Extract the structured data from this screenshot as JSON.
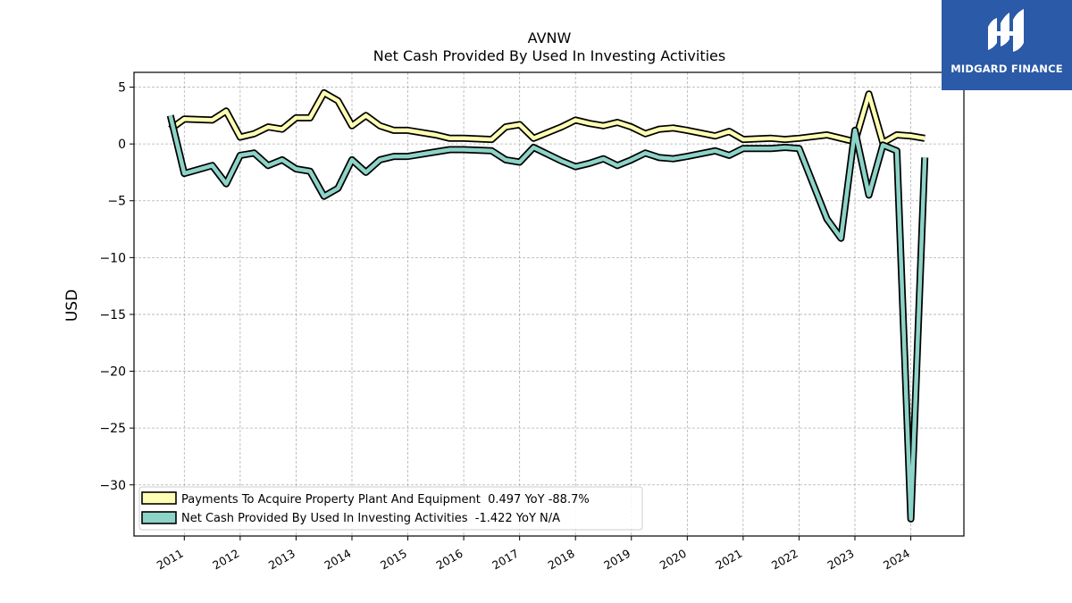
{
  "logo": {
    "text": "MIDGARD FINANCE"
  },
  "chart_data": {
    "type": "line",
    "title": "AVNW",
    "subtitle": "Net Cash Provided By Used In Investing Activities",
    "ylabel": "USD",
    "xlabel": "",
    "ylim": [
      -34.5,
      6.3
    ],
    "xlim": [
      2010.1,
      2024.95
    ],
    "yticks": [
      5,
      0,
      -5,
      -10,
      -15,
      -20,
      -25,
      -30
    ],
    "xticks": [
      "2011",
      "2012",
      "2013",
      "2014",
      "2015",
      "2016",
      "2017",
      "2018",
      "2019",
      "2020",
      "2021",
      "2022",
      "2023",
      "2024"
    ],
    "grid": true,
    "legend_position": "lower-left",
    "series": [
      {
        "name": "Payments To Acquire Property Plant And Equipment  0.497 YoY -88.7%",
        "color": "#ffffb3",
        "x": [
          2010.75,
          2011.0,
          2011.5,
          2011.75,
          2012.0,
          2012.25,
          2012.5,
          2012.75,
          2013.0,
          2013.25,
          2013.5,
          2013.75,
          2014.0,
          2014.25,
          2014.5,
          2014.75,
          2015.0,
          2015.5,
          2015.75,
          2016.0,
          2016.5,
          2016.75,
          2017.0,
          2017.25,
          2017.75,
          2018.0,
          2018.25,
          2018.5,
          2018.75,
          2019.0,
          2019.25,
          2019.5,
          2019.75,
          2020.0,
          2020.5,
          2020.75,
          2021.0,
          2021.5,
          2021.75,
          2022.0,
          2022.5,
          2022.75,
          2023.0,
          2023.25,
          2023.5,
          2023.75,
          2024.0,
          2024.25
        ],
        "values": [
          1.3,
          2.2,
          2.1,
          2.9,
          0.6,
          0.9,
          1.5,
          1.3,
          2.3,
          2.3,
          4.5,
          3.8,
          1.6,
          2.5,
          1.6,
          1.2,
          1.2,
          0.8,
          0.5,
          0.5,
          0.4,
          1.5,
          1.7,
          0.5,
          1.5,
          2.1,
          1.8,
          1.6,
          1.9,
          1.5,
          0.9,
          1.3,
          1.4,
          1.2,
          0.7,
          1.1,
          0.4,
          0.5,
          0.4,
          0.5,
          0.8,
          0.5,
          0.2,
          4.4,
          0.1,
          0.8,
          0.7,
          0.5
        ]
      },
      {
        "name": "Net Cash Provided By Used In Investing Activities  -1.422 YoY N/A",
        "color": "#8dd3c7",
        "x": [
          2010.75,
          2011.0,
          2011.5,
          2011.75,
          2012.0,
          2012.25,
          2012.5,
          2012.75,
          2013.0,
          2013.25,
          2013.5,
          2013.75,
          2014.0,
          2014.25,
          2014.5,
          2014.75,
          2015.0,
          2015.5,
          2015.75,
          2016.0,
          2016.5,
          2016.75,
          2017.0,
          2017.25,
          2017.75,
          2018.0,
          2018.25,
          2018.5,
          2018.75,
          2019.0,
          2019.25,
          2019.5,
          2019.75,
          2020.0,
          2020.5,
          2020.75,
          2021.0,
          2021.5,
          2021.75,
          2022.0,
          2022.5,
          2022.75,
          2023.0,
          2023.25,
          2023.5,
          2023.75,
          2024.0,
          2024.25
        ],
        "values": [
          2.5,
          -2.6,
          -1.9,
          -3.5,
          -1.0,
          -0.8,
          -1.9,
          -1.4,
          -2.2,
          -2.4,
          -4.6,
          -3.9,
          -1.4,
          -2.5,
          -1.4,
          -1.1,
          -1.1,
          -0.7,
          -0.5,
          -0.5,
          -0.6,
          -1.4,
          -1.6,
          -0.3,
          -1.5,
          -2.0,
          -1.7,
          -1.3,
          -1.9,
          -1.4,
          -0.8,
          -1.2,
          -1.3,
          -1.1,
          -0.6,
          -1.0,
          -0.4,
          -0.4,
          -0.3,
          -0.4,
          -6.6,
          -8.3,
          1.2,
          -4.5,
          -0.1,
          -0.6,
          -33.0,
          -1.2
        ]
      }
    ]
  }
}
